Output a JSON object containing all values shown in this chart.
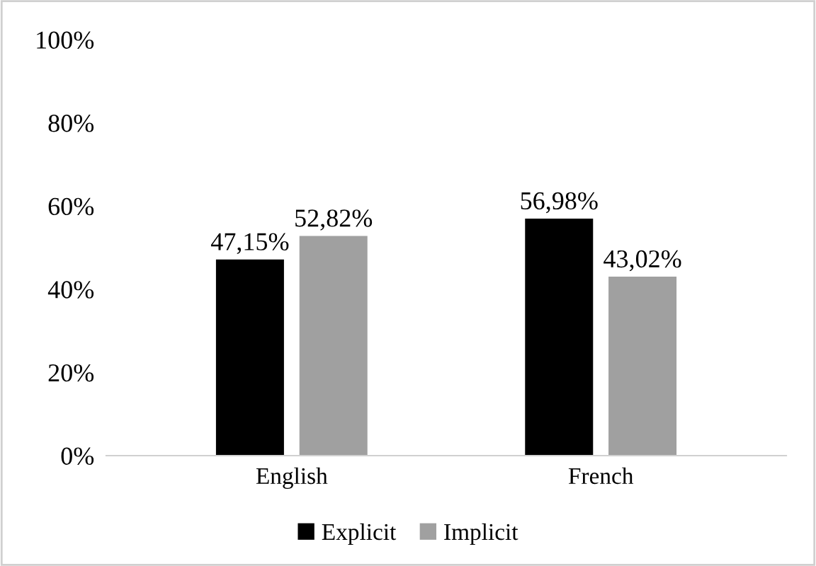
{
  "chart_data": {
    "type": "bar",
    "categories": [
      "English",
      "French"
    ],
    "series": [
      {
        "name": "Explicit",
        "color": "#000000",
        "values": [
          47.15,
          56.98
        ],
        "value_labels": [
          "47,15%",
          "56,98%"
        ]
      },
      {
        "name": "Implicit",
        "color": "#a0a0a0",
        "values": [
          52.82,
          43.02
        ],
        "value_labels": [
          "52,82%",
          "43,02%"
        ]
      }
    ],
    "ylim": [
      0,
      100
    ],
    "yticks": [
      {
        "value": 0,
        "label": "0%"
      },
      {
        "value": 20,
        "label": "20%"
      },
      {
        "value": 40,
        "label": "40%"
      },
      {
        "value": 60,
        "label": "60%"
      },
      {
        "value": 80,
        "label": "80%"
      },
      {
        "value": 100,
        "label": "100%"
      }
    ],
    "grid": false,
    "legend": "bottom"
  }
}
